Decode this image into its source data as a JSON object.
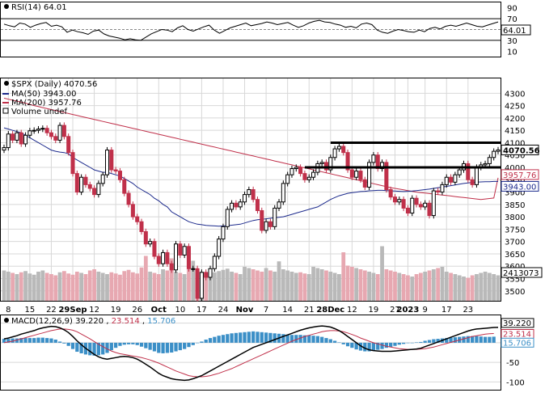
{
  "chart_data": [
    {
      "panel": "rsi",
      "type": "line",
      "title": "RSI(14) 64.01",
      "current_value": "64.01",
      "yticks": [
        "90",
        "70",
        "50",
        "30",
        "10"
      ],
      "ylim": [
        0,
        100
      ],
      "bands": [
        30,
        50,
        70
      ],
      "values": [
        60,
        57,
        55,
        62,
        60,
        54,
        58,
        61,
        63,
        56,
        58,
        55,
        45,
        49,
        46,
        44,
        41,
        47,
        49,
        42,
        38,
        36,
        34,
        31,
        33,
        31,
        30,
        36,
        42,
        46,
        50,
        49,
        46,
        53,
        57,
        50,
        47,
        51,
        55,
        58,
        49,
        43,
        48,
        53,
        56,
        59,
        62,
        57,
        59,
        61,
        64,
        62,
        59,
        61,
        63,
        58,
        54,
        57,
        62,
        65,
        67,
        64,
        63,
        60,
        58,
        54,
        56,
        53,
        60,
        62,
        59,
        49,
        45,
        43,
        47,
        50,
        48,
        46,
        45,
        49,
        46,
        52,
        54,
        51,
        56,
        58,
        56,
        59,
        62,
        59,
        56,
        55,
        58,
        61,
        64
      ]
    },
    {
      "panel": "price",
      "type": "candlestick",
      "title": "$SPX (Daily) 4070.56",
      "legend": [
        {
          "label": "MA(50) 3943.00",
          "color": "#1c2a8c"
        },
        {
          "label": "MA(200) 3957.76",
          "color": "#c0304a"
        },
        {
          "label": "Volume undef",
          "color": "#777777"
        }
      ],
      "ylim": [
        3460,
        4360
      ],
      "yticks": [
        "4300",
        "4250",
        "4200",
        "4150",
        "4100",
        "4050",
        "4000",
        "3950",
        "3900",
        "3850",
        "3800",
        "3750",
        "3700",
        "3650",
        "3600",
        "3550",
        "3500"
      ],
      "price_tags": [
        {
          "value": 4070.56,
          "text": "4070.56"
        },
        {
          "value": 3957.76,
          "text": "3957.76"
        },
        {
          "value": 3943.0,
          "text": "3943.00"
        }
      ],
      "volume_tag": "2413073",
      "x_labels": [
        "8",
        "15",
        "22",
        "29Sep",
        "12",
        "19",
        "26",
        "Oct",
        "10",
        "17",
        "24",
        "Nov",
        "7",
        "14",
        "21",
        "28Dec",
        "12",
        "19",
        "27",
        "2023",
        "9",
        "17",
        "23"
      ],
      "x_label_bars": [
        1,
        6,
        11,
        16,
        21,
        26,
        31,
        36,
        41,
        46,
        51,
        56,
        61,
        66,
        71,
        76,
        81,
        86,
        91,
        94,
        98,
        103,
        108
      ],
      "horizontal_lines": [
        4100,
        4000
      ],
      "closes": [
        4080,
        4135,
        4110,
        4140,
        4095,
        4130,
        4148,
        4150,
        4155,
        4158,
        4140,
        4125,
        4110,
        4170,
        4125,
        4060,
        3975,
        3900,
        3960,
        3930,
        3915,
        3890,
        3935,
        3970,
        4070,
        3990,
        3985,
        3950,
        3895,
        3850,
        3800,
        3780,
        3740,
        3690,
        3700,
        3640,
        3610,
        3655,
        3610,
        3585,
        3690,
        3645,
        3680,
        3590,
        3590,
        3470,
        3575,
        3555,
        3590,
        3640,
        3710,
        3760,
        3830,
        3855,
        3840,
        3860,
        3890,
        3910,
        3870,
        3825,
        3745,
        3780,
        3760,
        3835,
        3860,
        3935,
        3970,
        3995,
        4000,
        3975,
        3950,
        3960,
        3980,
        4015,
        4020,
        3990,
        4040,
        4075,
        4085,
        4060,
        3990,
        3960,
        3985,
        3950,
        3920,
        4020,
        4050,
        3995,
        4020,
        3910,
        3880,
        3860,
        3870,
        3835,
        3815,
        3875,
        3850,
        3840,
        3855,
        3805,
        3905,
        3900,
        3930,
        3960,
        3940,
        3970,
        3990,
        4015,
        3950,
        3930,
        4000,
        4010,
        4015,
        4040,
        4065,
        4070.56
      ],
      "ma50": [
        4160,
        4155,
        4150,
        4145,
        4140,
        4130,
        4120,
        4110,
        4100,
        4090,
        4080,
        4070,
        4065,
        4062,
        4060,
        4055,
        4040,
        4030,
        4020,
        4010,
        4000,
        3990,
        3985,
        3980,
        3980,
        3975,
        3970,
        3965,
        3955,
        3945,
        3935,
        3920,
        3910,
        3900,
        3890,
        3875,
        3865,
        3850,
        3840,
        3820,
        3810,
        3800,
        3790,
        3780,
        3775,
        3770,
        3768,
        3765,
        3764,
        3763,
        3762,
        3763,
        3764,
        3766,
        3768,
        3770,
        3775,
        3780,
        3785,
        3788,
        3790,
        3792,
        3794,
        3796,
        3798,
        3800,
        3805,
        3810,
        3815,
        3820,
        3825,
        3830,
        3835,
        3840,
        3850,
        3860,
        3870,
        3878,
        3885,
        3890,
        3895,
        3898,
        3900,
        3902,
        3903,
        3905,
        3906,
        3907,
        3907,
        3906,
        3905,
        3904,
        3903,
        3902,
        3903,
        3904,
        3906,
        3908,
        3910,
        3912,
        3915,
        3918,
        3920,
        3923,
        3926,
        3929,
        3932,
        3935,
        3937,
        3939,
        3940,
        3941,
        3942,
        3942,
        3943,
        3943.0
      ],
      "ma200": [
        4280,
        4276,
        4272,
        4268,
        4264,
        4260,
        4255,
        4250,
        4246,
        4242,
        4238,
        4234,
        4230,
        4226,
        4222,
        4218,
        4214,
        4210,
        4206,
        4202,
        4198,
        4194,
        4190,
        4186,
        4182,
        4178,
        4174,
        4170,
        4166,
        4162,
        4158,
        4154,
        4150,
        4146,
        4142,
        4138,
        4134,
        4130,
        4126,
        4122,
        4118,
        4114,
        4110,
        4106,
        4102,
        4098,
        4094,
        4090,
        4086,
        4082,
        4078,
        4074,
        4070,
        4066,
        4062,
        4058,
        4054,
        4050,
        4046,
        4042,
        4038,
        4034,
        4030,
        4026,
        4022,
        4018,
        4014,
        4010,
        4006,
        4002,
        3998,
        3994,
        3990,
        3986,
        3982,
        3978,
        3974,
        3970,
        3966,
        3962,
        3958,
        3954,
        3950,
        3946,
        3942,
        3938,
        3934,
        3930,
        3926,
        3922,
        3918,
        3915,
        3912,
        3909,
        3906,
        3903,
        3900,
        3898,
        3896,
        3894,
        3892,
        3890,
        3888,
        3886,
        3884,
        3882,
        3880,
        3878,
        3876,
        3874,
        3872,
        3870,
        3872,
        3874,
        3876,
        3957.76
      ],
      "volume": [
        50,
        48,
        46,
        44,
        47,
        49,
        45,
        43,
        48,
        50,
        46,
        44,
        42,
        47,
        49,
        45,
        43,
        48,
        46,
        44,
        50,
        52,
        48,
        46,
        44,
        47,
        45,
        43,
        49,
        51,
        47,
        45,
        55,
        74,
        48,
        46,
        44,
        52,
        50,
        70,
        48,
        46,
        44,
        60,
        66,
        50,
        48,
        46,
        44,
        47,
        49,
        51,
        53,
        48,
        46,
        44,
        56,
        54,
        52,
        50,
        48,
        54,
        50,
        48,
        65,
        52,
        50,
        48,
        46,
        47,
        45,
        44,
        56,
        54,
        52,
        50,
        48,
        46,
        44,
        80,
        58,
        56,
        54,
        52,
        50,
        48,
        46,
        44,
        90,
        52,
        50,
        48,
        46,
        44,
        42,
        40,
        44,
        46,
        48,
        50,
        52,
        54,
        56,
        48,
        46,
        44,
        42,
        40,
        38,
        42,
        44,
        46,
        48,
        46,
        44,
        42
      ]
    },
    {
      "panel": "macd",
      "type": "line",
      "title": "MACD(12,26,9) 39.220, 23.514, 15.706",
      "title_parts": {
        "label": "MACD(12,26,9)",
        "macd": "39.220",
        "signal": "23.514",
        "hist": "15.706"
      },
      "yticks": [
        "50",
        "0",
        "-50",
        "-100"
      ],
      "ylim": [
        -120,
        70
      ],
      "tags": [
        {
          "value": 39.22,
          "text": "39.220",
          "color": "#000000"
        },
        {
          "value": 23.514,
          "text": "23.514",
          "color": "#c0304a"
        },
        {
          "value": 15.706,
          "text": "15.706",
          "color": "#3b8fc7"
        }
      ],
      "macd": [
        10,
        12,
        15,
        18,
        22,
        25,
        28,
        31,
        35,
        38,
        40,
        42,
        41,
        38,
        33,
        26,
        16,
        5,
        -5,
        -14,
        -22,
        -30,
        -36,
        -40,
        -42,
        -40,
        -38,
        -36,
        -35,
        -36,
        -38,
        -42,
        -48,
        -55,
        -62,
        -70,
        -78,
        -84,
        -88,
        -92,
        -94,
        -95,
        -96,
        -95,
        -92,
        -88,
        -84,
        -78,
        -72,
        -66,
        -60,
        -54,
        -48,
        -42,
        -36,
        -30,
        -24,
        -18,
        -12,
        -8,
        -4,
        0,
        4,
        8,
        12,
        16,
        20,
        24,
        28,
        32,
        35,
        38,
        40,
        42,
        43,
        42,
        40,
        36,
        31,
        24,
        16,
        8,
        0,
        -8,
        -14,
        -18,
        -20,
        -21,
        -22,
        -22,
        -22,
        -21,
        -20,
        -19,
        -18,
        -17,
        -16,
        -14,
        -10,
        -6,
        -2,
        2,
        6,
        10,
        14,
        18,
        22,
        26,
        30,
        33,
        35,
        36,
        37,
        38,
        39,
        39.22
      ],
      "signal": [
        0,
        2,
        4,
        7,
        10,
        13,
        16,
        19,
        22,
        25,
        28,
        31,
        33,
        35,
        35,
        34,
        32,
        28,
        22,
        16,
        10,
        3,
        -4,
        -10,
        -16,
        -21,
        -25,
        -28,
        -30,
        -32,
        -34,
        -36,
        -38,
        -41,
        -44,
        -48,
        -52,
        -57,
        -62,
        -67,
        -72,
        -76,
        -80,
        -84,
        -86,
        -87,
        -87,
        -86,
        -84,
        -81,
        -78,
        -74,
        -70,
        -66,
        -61,
        -56,
        -51,
        -46,
        -41,
        -36,
        -31,
        -26,
        -21,
        -16,
        -11,
        -6,
        -1,
        4,
        8,
        12,
        16,
        19,
        22,
        25,
        28,
        30,
        31,
        31,
        30,
        28,
        25,
        21,
        17,
        12,
        8,
        4,
        0,
        -3,
        -6,
        -9,
        -11,
        -13,
        -15,
        -16,
        -17,
        -17,
        -17,
        -16,
        -15,
        -13,
        -11,
        -8,
        -5,
        -2,
        1,
        4,
        7,
        10,
        13,
        16,
        18,
        20,
        22,
        23,
        23.514
      ]
    }
  ],
  "colors": {
    "up_candle": "#000000",
    "down_candle": "#c0304a",
    "ma50": "#1c2a8c",
    "ma200": "#c0304a",
    "volume_up": "#b9b9b9",
    "volume_down": "#e7a8b1",
    "histogram": "#3b8fc7",
    "grid": "#d8d8d8",
    "panel_border": "#000000"
  }
}
